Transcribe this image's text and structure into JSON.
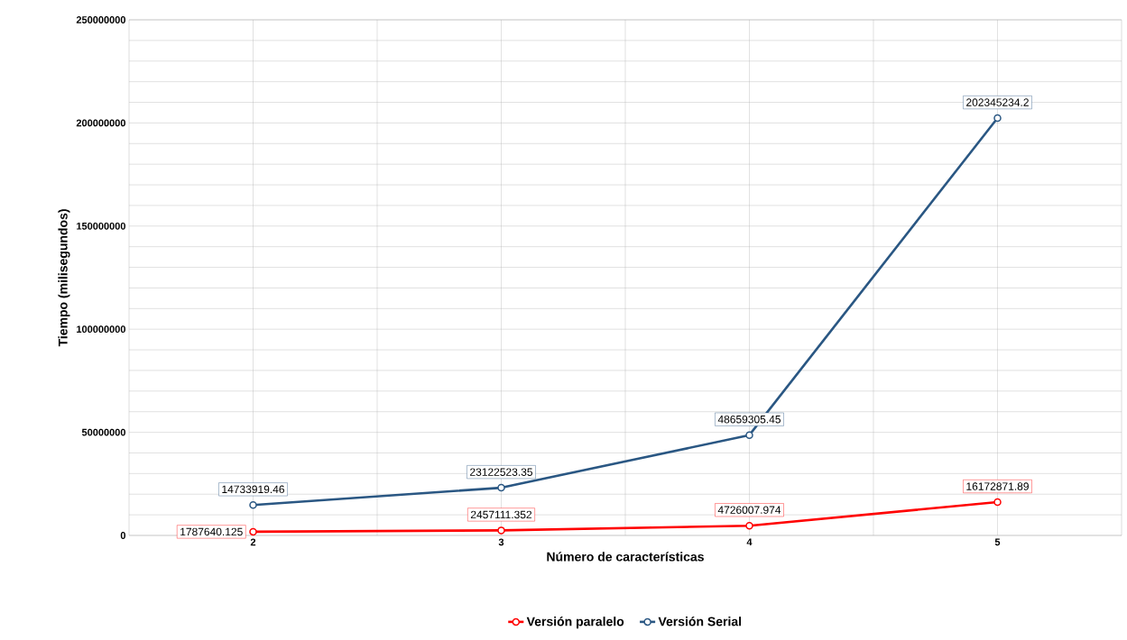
{
  "chart_data": {
    "type": "line",
    "xlabel": "Número de características",
    "ylabel": "Tiempo (milisegundos)",
    "x": [
      2,
      3,
      4,
      5
    ],
    "xlim": [
      1.5,
      5.5
    ],
    "xticks": [
      2,
      3,
      4,
      5
    ],
    "ylim": [
      0,
      250000000
    ],
    "yticks": [
      0,
      50000000,
      100000000,
      150000000,
      200000000,
      250000000
    ],
    "series": [
      {
        "name": "Versión paralelo",
        "color": "#ff0000",
        "values": [
          1787640.125,
          2457111.352,
          4726007.974,
          16172871.89
        ]
      },
      {
        "name": "Versión Serial",
        "color": "#2a5783",
        "values": [
          14733919.46,
          23122523.35,
          48659305.45,
          202345234.2
        ]
      }
    ],
    "data_labels": true,
    "grid": true,
    "legend": "bottom",
    "marker": "circle",
    "line_style": "solid"
  }
}
